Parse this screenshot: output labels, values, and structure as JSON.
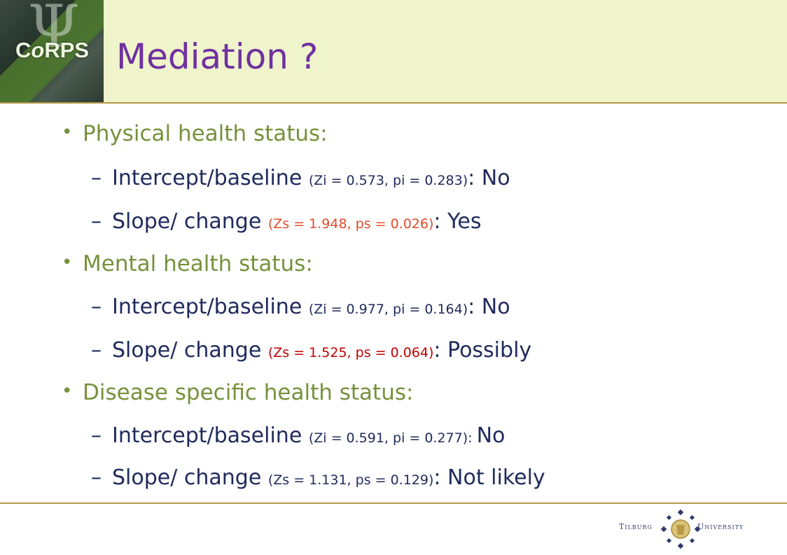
{
  "header": {
    "logo_text_a": "C",
    "logo_text_o": "o",
    "logo_text_b": "RPS",
    "title": "Mediation ?"
  },
  "sections": [
    {
      "heading": "Physical health status:",
      "items": [
        {
          "label": "Intercept/baseline",
          "stats": "(Zi = 0.573, pi = 0.283)",
          "result": ": No"
        },
        {
          "label": "Slope/ change",
          "stats": "(Zs = 1.948, ps = 0.026)",
          "result": ": Yes"
        }
      ]
    },
    {
      "heading": "Mental health status:",
      "items": [
        {
          "label": "Intercept/baseline",
          "stats": "(Zi = 0.977, pi = 0.164)",
          "result": ": No"
        },
        {
          "label": "Slope/ change",
          "stats": "(Zs = 1.525, ps = 0.064)",
          "result": ": Possibly"
        }
      ]
    },
    {
      "heading": "Disease specific health status:",
      "items": [
        {
          "label": "Intercept/baseline",
          "stats": "(Zi = 0.591, pi = 0.277): ",
          "result": "No"
        },
        {
          "label": "Slope/ change",
          "stats": "(Zs = 1.131, ps = 0.129)",
          "result": ": Not likely"
        }
      ]
    }
  ],
  "footer": {
    "university_left": "Tilburg",
    "university_right": "University"
  },
  "colors": {
    "title": "#7030a0",
    "heading": "#76923c",
    "body": "#1f2a5c",
    "stats_highlight": "#e24a2a",
    "stats_highlight_dark": "#c00000",
    "header_bg": "#eff4cb",
    "rule": "#b49a4a"
  }
}
